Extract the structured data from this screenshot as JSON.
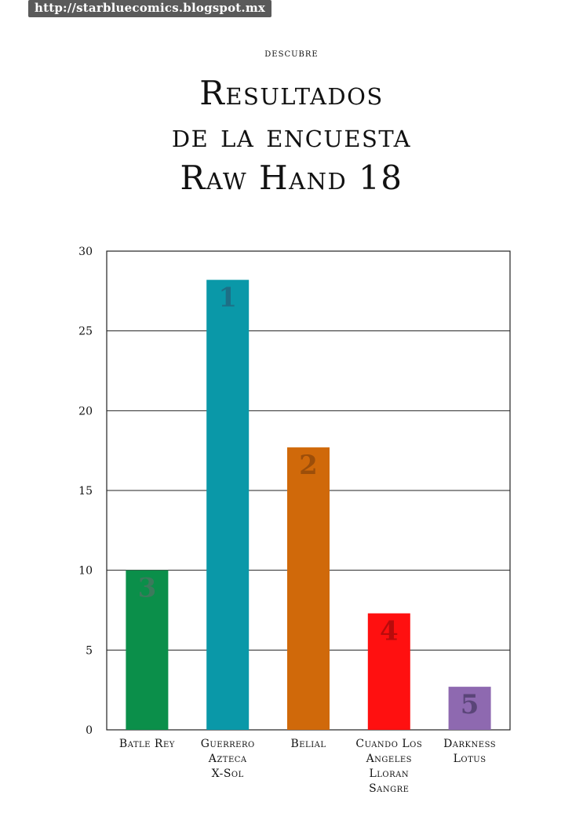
{
  "watermark": "http://starbluecomics.blogspot.mx",
  "kicker": "descubre",
  "title_lines": [
    "Resultados",
    "de la encuesta",
    "Raw Hand 18"
  ],
  "chart_data": {
    "type": "bar",
    "title": "",
    "xlabel": "",
    "ylabel": "",
    "ylim": [
      0,
      30
    ],
    "yticks": [
      0,
      5,
      10,
      15,
      20,
      25,
      30
    ],
    "grid": true,
    "categories": [
      [
        "Batle Rey"
      ],
      [
        "Guerrero",
        "Azteca",
        "X-Sol"
      ],
      [
        "Belial"
      ],
      [
        "Cuando Los",
        "Angeles",
        "Lloran",
        "Sangre"
      ],
      [
        "Darkness",
        "Lotus"
      ]
    ],
    "values": [
      10,
      28.2,
      17.7,
      7.3,
      2.7
    ],
    "ranks": [
      "3",
      "1",
      "2",
      "4",
      "5"
    ],
    "colors": [
      "#0b8f4a",
      "#0a98a8",
      "#d0690a",
      "#ff1010",
      "#8e69b0"
    ],
    "rank_colors": [
      "#3c7a5c",
      "#1d6f86",
      "#9c4e0a",
      "#b90b0b",
      "#5a4578"
    ]
  }
}
